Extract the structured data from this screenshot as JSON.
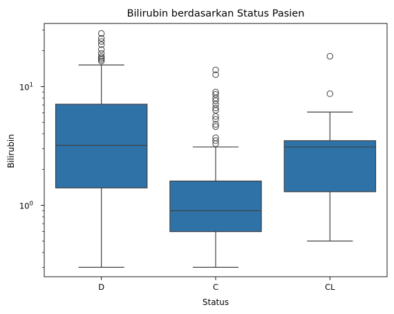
{
  "chart_data": {
    "type": "box",
    "title": "Bilirubin berdasarkan Status Pasien",
    "xlabel": "Status",
    "ylabel": "Bilirubin",
    "yscale": "log",
    "ylim": [
      0.25,
      34
    ],
    "y_ticks": [
      {
        "value": 1,
        "base": "10",
        "exp": "0"
      },
      {
        "value": 10,
        "base": "10",
        "exp": "1"
      }
    ],
    "grid": false,
    "color": "#2e72a8",
    "line_color": "#3f3f3f",
    "categories": [
      "D",
      "C",
      "CL"
    ],
    "boxes": [
      {
        "category": "D",
        "whisker_low": 0.3,
        "q1": 1.4,
        "median": 3.2,
        "q3": 7.1,
        "whisker_high": 15.2,
        "outliers": [
          16.4,
          16.9,
          17.4,
          17.9,
          19.0,
          20.5,
          22.5,
          24.0,
          25.5,
          28.0
        ]
      },
      {
        "category": "C",
        "whisker_low": 0.3,
        "q1": 0.6,
        "median": 0.9,
        "q3": 1.6,
        "whisker_high": 3.1,
        "outliers": [
          3.3,
          3.5,
          3.7,
          4.6,
          4.8,
          5.3,
          5.6,
          6.3,
          6.6,
          7.1,
          7.6,
          8.0,
          8.6,
          9.0,
          12.6,
          13.8
        ]
      },
      {
        "category": "CL",
        "whisker_low": 0.5,
        "q1": 1.3,
        "median": 3.1,
        "q3": 3.5,
        "whisker_high": 6.1,
        "outliers": [
          8.7,
          18.0
        ]
      }
    ]
  }
}
